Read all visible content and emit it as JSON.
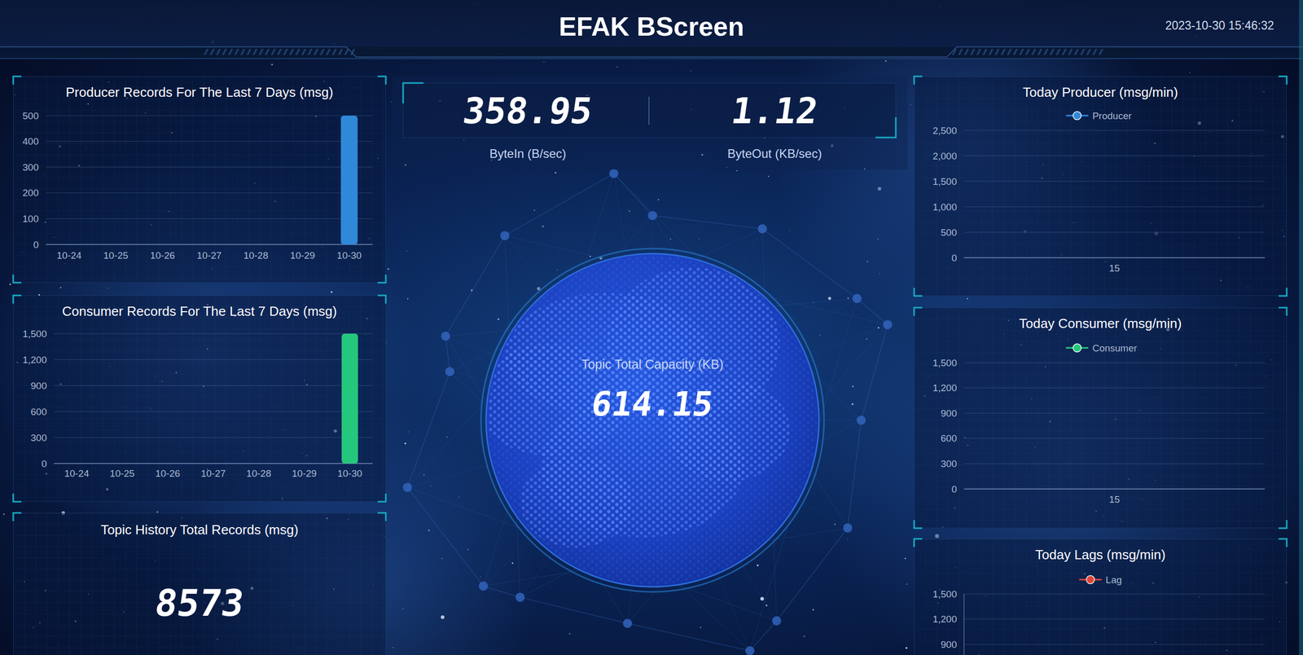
{
  "header": {
    "title": "EFAK BScreen",
    "datetime": "2023-10-30 15:46:32"
  },
  "stats": {
    "byte_in": {
      "value": 358.95,
      "label": "ByteIn (B/sec)"
    },
    "byte_out": {
      "value": 1.12,
      "label": "ByteOut (KB/sec)"
    },
    "topic_capacity": {
      "value": 614.15,
      "label": "Topic Total Capacity (KB)"
    },
    "topic_history": {
      "value": 8573,
      "label": "Topic History Total Records (msg)"
    }
  },
  "chart_data": [
    {
      "type": "bar",
      "title": "Producer Records For The Last 7 Days (msg)",
      "categories": [
        "10-24",
        "10-25",
        "10-26",
        "10-27",
        "10-28",
        "10-29",
        "10-30"
      ],
      "values": [
        0,
        0,
        0,
        0,
        0,
        0,
        500
      ],
      "color": "#2f88d8",
      "ylim": [
        0,
        500
      ],
      "yticks": [
        0,
        100,
        200,
        300,
        400,
        500
      ],
      "grid": true
    },
    {
      "type": "bar",
      "title": "Consumer Records For The Last 7 Days (msg)",
      "categories": [
        "10-24",
        "10-25",
        "10-26",
        "10-27",
        "10-28",
        "10-29",
        "10-30"
      ],
      "values": [
        0,
        0,
        0,
        0,
        0,
        0,
        1500
      ],
      "color": "#25c77c",
      "ylim": [
        0,
        1500
      ],
      "yticks": [
        0,
        300,
        600,
        900,
        {
          "value": 1200,
          "label": "1,200"
        },
        {
          "value": 1500,
          "label": "1,500"
        }
      ],
      "grid": true
    },
    {
      "type": "line",
      "title": "Today Producer (msg/min)",
      "categories": [
        "15"
      ],
      "series": [
        {
          "name": "Producer",
          "color": "#2f88d8",
          "values": [
            null
          ]
        }
      ],
      "ylim": [
        0,
        2500
      ],
      "yticks": [
        0,
        500,
        {
          "value": 1000,
          "label": "1,000"
        },
        {
          "value": 1500,
          "label": "1,500"
        },
        {
          "value": 2000,
          "label": "2,000"
        },
        {
          "value": 2500,
          "label": "2,500"
        }
      ],
      "grid": true,
      "legend": "top",
      "marker": "circle"
    },
    {
      "type": "line",
      "title": "Today Consumer (msg/min)",
      "categories": [
        "15"
      ],
      "series": [
        {
          "name": "Consumer",
          "color": "#25c77c",
          "values": [
            null
          ]
        }
      ],
      "ylim": [
        0,
        1500
      ],
      "yticks": [
        0,
        300,
        600,
        900,
        {
          "value": 1200,
          "label": "1,200"
        },
        {
          "value": 1500,
          "label": "1,500"
        }
      ],
      "grid": true,
      "legend": "top",
      "marker": "circle"
    },
    {
      "type": "line",
      "title": "Today Lags (msg/min)",
      "categories": [],
      "series": [
        {
          "name": "Lag",
          "color": "#e0453a",
          "values": []
        }
      ],
      "ylim": [
        0,
        1500
      ],
      "yticks": [
        900,
        {
          "value": 1200,
          "label": "1,200"
        },
        {
          "value": 1500,
          "label": "1,500"
        }
      ],
      "grid": true,
      "legend": "top",
      "marker": "circle"
    }
  ]
}
